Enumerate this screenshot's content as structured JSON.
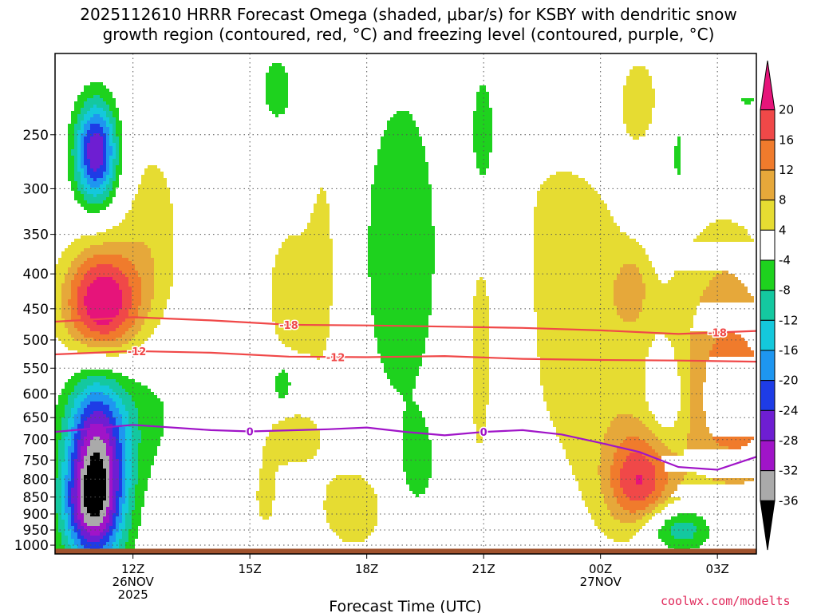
{
  "title": {
    "line1": "2025112610 HRRR Forecast Omega (shaded, μbar/s) for KSBY with dendritic snow",
    "line2": "growth region (contoured, red, °C) and freezing level (contoured, purple, °C)"
  },
  "credit": "coolwx.com/modelts",
  "chart_data": {
    "type": "heatmap",
    "xlabel": "Forecast Time (UTC)",
    "ylabel": "",
    "x_ticks": [
      {
        "hour": 12,
        "lines": [
          "12Z",
          "26NOV",
          "2025"
        ]
      },
      {
        "hour": 15,
        "lines": [
          "15Z"
        ]
      },
      {
        "hour": 18,
        "lines": [
          "18Z"
        ]
      },
      {
        "hour": 21,
        "lines": [
          "21Z"
        ]
      },
      {
        "hour": 24,
        "lines": [
          "00Z",
          "27NOV"
        ]
      },
      {
        "hour": 27,
        "lines": [
          "03Z"
        ]
      }
    ],
    "x_range_hours": [
      10,
      28
    ],
    "y_scale": "log-pressure",
    "y_range_hPa": [
      1030,
      190
    ],
    "y_ticks": [
      250,
      300,
      350,
      400,
      450,
      500,
      550,
      600,
      650,
      700,
      750,
      800,
      850,
      900,
      950,
      1000
    ],
    "grid": true,
    "colorbar": {
      "labels": [
        "20",
        "16",
        "12",
        "8",
        "4",
        "-4",
        "-8",
        "-12",
        "-16",
        "-20",
        "-24",
        "-28",
        "-32",
        "-36"
      ],
      "bins": [
        {
          "max": 999,
          "color": "#e6147a"
        },
        {
          "max": 20,
          "color": "#f04848"
        },
        {
          "max": 16,
          "color": "#f07b2c"
        },
        {
          "max": 12,
          "color": "#e6a83a"
        },
        {
          "max": 8,
          "color": "#e6dc32"
        },
        {
          "max": 4,
          "color": "#ffffff"
        },
        {
          "max": -4,
          "color": "#1ed21e"
        },
        {
          "max": -8,
          "color": "#14c8a0"
        },
        {
          "max": -12,
          "color": "#14c8dc"
        },
        {
          "max": -16,
          "color": "#1e96f0"
        },
        {
          "max": -20,
          "color": "#1e3ce6"
        },
        {
          "max": -24,
          "color": "#6e1ed2"
        },
        {
          "max": -28,
          "color": "#a014c8"
        },
        {
          "max": -32,
          "color": "#aaaaaa"
        },
        {
          "max": -36,
          "color": "#000000"
        }
      ]
    },
    "omega_features": [
      {
        "t": 11.05,
        "p": 265,
        "st": 0.38,
        "sp": 0.12,
        "amp": -28
      },
      {
        "t": 11.05,
        "p": 780,
        "st": 0.55,
        "sp": 0.22,
        "amp": -34
      },
      {
        "t": 10.85,
        "p": 890,
        "st": 0.5,
        "sp": 0.1,
        "amp": -10
      },
      {
        "t": 11.2,
        "p": 445,
        "st": 0.7,
        "sp": 0.14,
        "amp": 26
      },
      {
        "t": 12.2,
        "p": 620,
        "st": 1.0,
        "sp": 0.2,
        "amp": -5.5
      },
      {
        "t": 12.5,
        "p": 355,
        "st": 0.6,
        "sp": 0.28,
        "amp": 6
      },
      {
        "t": 15.85,
        "p": 580,
        "st": 0.18,
        "sp": 0.05,
        "amp": -10
      },
      {
        "t": 16.05,
        "p": 430,
        "st": 0.5,
        "sp": 0.2,
        "amp": 6.5
      },
      {
        "t": 16.1,
        "p": 700,
        "st": 0.5,
        "sp": 0.07,
        "amp": 6.5
      },
      {
        "t": 17.7,
        "p": 880,
        "st": 0.7,
        "sp": 0.12,
        "amp": 7
      },
      {
        "t": 15.4,
        "p": 850,
        "st": 0.3,
        "sp": 0.12,
        "amp": 5
      },
      {
        "t": 16.9,
        "p": 380,
        "st": 0.3,
        "sp": 0.35,
        "amp": 5
      },
      {
        "t": 18.9,
        "p": 370,
        "st": 0.8,
        "sp": 0.45,
        "amp": -7
      },
      {
        "t": 19.3,
        "p": 760,
        "st": 0.3,
        "sp": 0.1,
        "amp": -6
      },
      {
        "t": 15.7,
        "p": 215,
        "st": 0.35,
        "sp": 0.1,
        "amp": -6
      },
      {
        "t": 20.9,
        "p": 540,
        "st": 0.2,
        "sp": 0.28,
        "amp": 6
      },
      {
        "t": 21.0,
        "p": 255,
        "st": 0.3,
        "sp": 0.22,
        "amp": -6
      },
      {
        "t": 22.0,
        "p": 540,
        "st": 0.2,
        "sp": 0.35,
        "amp": -7
      },
      {
        "t": 23.0,
        "p": 380,
        "st": 1.2,
        "sp": 0.3,
        "amp": 6
      },
      {
        "t": 24.2,
        "p": 630,
        "st": 1.4,
        "sp": 0.35,
        "amp": 5
      },
      {
        "t": 24.8,
        "p": 420,
        "st": 0.3,
        "sp": 0.08,
        "amp": 7
      },
      {
        "t": 25.0,
        "p": 220,
        "st": 0.5,
        "sp": 0.15,
        "amp": 5
      },
      {
        "t": 25.0,
        "p": 810,
        "st": 0.6,
        "sp": 0.12,
        "amp": 16
      },
      {
        "t": 25.7,
        "p": 610,
        "st": 0.45,
        "sp": 0.14,
        "amp": -8
      },
      {
        "t": 26.0,
        "p": 270,
        "st": 0.13,
        "sp": 0.1,
        "amp": -6
      },
      {
        "t": 27.5,
        "p": 620,
        "st": 1.3,
        "sp": 0.25,
        "amp": 14
      },
      {
        "t": 27.2,
        "p": 400,
        "st": 0.8,
        "sp": 0.2,
        "amp": 5
      },
      {
        "t": 26.0,
        "p": 945,
        "st": 0.7,
        "sp": 0.06,
        "amp": -14
      },
      {
        "t": 27.8,
        "p": 205,
        "st": 0.3,
        "sp": 0.08,
        "amp": -8
      }
    ],
    "contours": [
      {
        "label": "-18",
        "color": "#f04848",
        "label_at": [
          16.0,
          27.0
        ],
        "points": [
          [
            10,
            470
          ],
          [
            12,
            463
          ],
          [
            14,
            468
          ],
          [
            16,
            475
          ],
          [
            18,
            476
          ],
          [
            20,
            478
          ],
          [
            22,
            480
          ],
          [
            24,
            484
          ],
          [
            26,
            490
          ],
          [
            28,
            485
          ]
        ]
      },
      {
        "label": "-12",
        "color": "#f04848",
        "label_at": [
          12.1,
          17.2
        ],
        "points": [
          [
            10,
            525
          ],
          [
            12,
            519
          ],
          [
            14,
            522
          ],
          [
            16,
            529
          ],
          [
            18,
            530
          ],
          [
            20,
            528
          ],
          [
            22,
            533
          ],
          [
            24,
            535
          ],
          [
            26,
            536
          ],
          [
            28,
            538
          ]
        ]
      },
      {
        "label": "0",
        "color": "#a014c8",
        "label_at": [
          15.0,
          21.0
        ],
        "points": [
          [
            10,
            682
          ],
          [
            12,
            666
          ],
          [
            14,
            678
          ],
          [
            15,
            681
          ],
          [
            17,
            676
          ],
          [
            18,
            672
          ],
          [
            19,
            682
          ],
          [
            20,
            690
          ],
          [
            21,
            682
          ],
          [
            22,
            678
          ],
          [
            23,
            688
          ],
          [
            24,
            708
          ],
          [
            25,
            730
          ],
          [
            26,
            768
          ],
          [
            27,
            775
          ],
          [
            28,
            742
          ]
        ]
      }
    ]
  }
}
